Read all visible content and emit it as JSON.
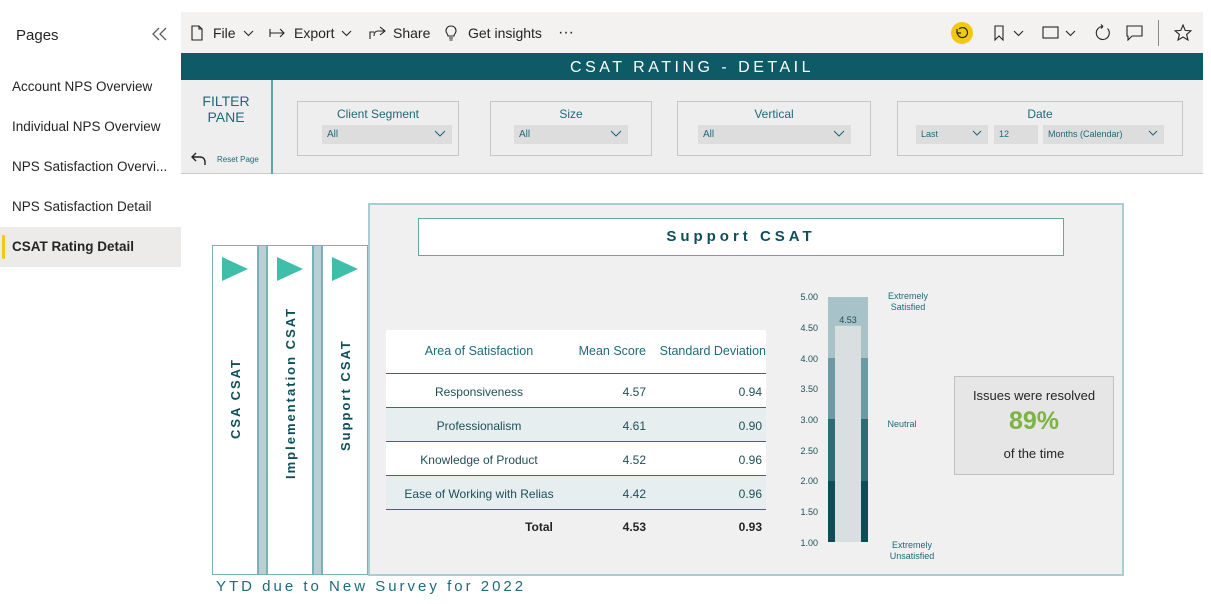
{
  "sidebar": {
    "title": "Pages",
    "items": [
      {
        "label": "Account NPS Overview"
      },
      {
        "label": "Individual NPS Overview"
      },
      {
        "label": "NPS Satisfaction Overvi..."
      },
      {
        "label": "NPS Satisfaction Detail"
      },
      {
        "label": "CSAT Rating Detail"
      }
    ]
  },
  "toolbar": {
    "file_label": "File",
    "export_label": "Export",
    "share_label": "Share",
    "insights_label": "Get insights",
    "more_label": "···"
  },
  "report": {
    "banner_title": "CSAT RATING - DETAIL",
    "filter_pane": {
      "title_line1": "FILTER",
      "title_line2": "PANE",
      "reset_label": "Reset Page",
      "slicers": {
        "client_segment": {
          "title": "Client Segment",
          "value": "All"
        },
        "size": {
          "title": "Size",
          "value": "All"
        },
        "vertical": {
          "title": "Vertical",
          "value": "All"
        },
        "date": {
          "title": "Date",
          "relative": "Last",
          "count": "12",
          "unit": "Months (Calendar)"
        }
      }
    },
    "nav_buttons": [
      {
        "label": "CSA CSAT"
      },
      {
        "label": "Implementation CSAT"
      },
      {
        "label": "Support CSAT"
      }
    ],
    "panel_title": "Support CSAT",
    "table": {
      "headers": [
        "Area of Satisfaction",
        "Mean Score",
        "Standard Deviation"
      ],
      "rows": [
        {
          "area": "Responsiveness",
          "mean": "4.57",
          "sd": "0.94"
        },
        {
          "area": "Professionalism",
          "mean": "4.61",
          "sd": "0.90"
        },
        {
          "area": "Knowledge of Product",
          "mean": "4.52",
          "sd": "0.96"
        },
        {
          "area": "Ease of Working with Relias",
          "mean": "4.42",
          "sd": "0.96"
        }
      ],
      "total": {
        "label": "Total",
        "mean": "4.53",
        "sd": "0.93"
      }
    },
    "gauge": {
      "value": 4.53,
      "value_label": "4.53",
      "min": 1.0,
      "max": 5.0,
      "ticks": [
        "5.00",
        "4.50",
        "4.00",
        "3.50",
        "3.00",
        "2.50",
        "2.00",
        "1.50",
        "1.00"
      ],
      "label_top_1": "Extremely",
      "label_top_2": "Satisfied",
      "label_mid": "Neutral",
      "label_bottom_1": "Extremely",
      "label_bottom_2": "Unsatisfied",
      "band_colors": [
        "#a8c3c8",
        "#6c9aa2",
        "#2c6c77",
        "#0e4c56"
      ]
    },
    "kpi": {
      "top_text": "Issues were resolved",
      "value": "89%",
      "bottom_text": "of the time"
    },
    "footer_note": "YTD due to New Survey for 2022"
  },
  "colors": {
    "brand_teal": "#0e5a66",
    "accent_yellow": "#f2c811",
    "kpi_green": "#7cb342"
  }
}
